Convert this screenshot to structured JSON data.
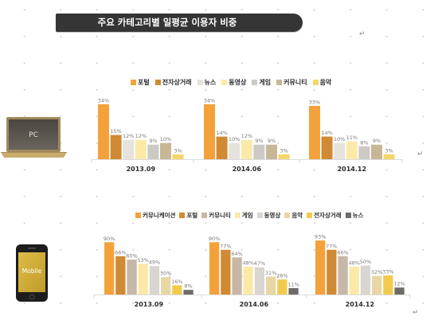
{
  "title": "주요 카테고리별 일평균 이용자 비중",
  "paragraph_marks": {
    "after_title": "↵",
    "after_pc_chart": "↵",
    "after_mobile_chart": "↵"
  },
  "chart_data": [
    {
      "type": "bar",
      "device": "PC",
      "icon": "laptop-icon",
      "legend": "top",
      "grid": false,
      "y_axis_visible": false,
      "value_suffix": "%",
      "categories": [
        "2013.09",
        "2014.06",
        "2014.12"
      ],
      "series": [
        {
          "name": "포털",
          "color": "#F3A23B",
          "values": [
            34,
            34,
            33
          ]
        },
        {
          "name": "전자상거래",
          "color": "#D08A33",
          "values": [
            15,
            14,
            14
          ]
        },
        {
          "name": "뉴스",
          "color": "#E6E2DC",
          "values": [
            12,
            10,
            10
          ]
        },
        {
          "name": "동영상",
          "color": "#FBE9A8",
          "values": [
            12,
            12,
            11
          ]
        },
        {
          "name": "게임",
          "color": "#CDC9C4",
          "values": [
            9,
            9,
            8
          ]
        },
        {
          "name": "커뮤니티",
          "color": "#C8B796",
          "values": [
            10,
            9,
            9
          ]
        },
        {
          "name": "음악",
          "color": "#F3D66A",
          "values": [
            3,
            3,
            3
          ]
        }
      ]
    },
    {
      "type": "bar",
      "device": "Mobile",
      "icon": "smartphone-icon",
      "legend": "top",
      "grid": false,
      "y_axis_visible": false,
      "value_suffix": "%",
      "categories": [
        "2013.09",
        "2014.06",
        "2014.12"
      ],
      "series": [
        {
          "name": "커뮤니케이션",
          "color": "#F3A23B",
          "values": [
            90,
            90,
            93
          ]
        },
        {
          "name": "포털",
          "color": "#D08A33",
          "values": [
            66,
            77,
            77
          ]
        },
        {
          "name": "커뮤니티",
          "color": "#C6B7A6",
          "values": [
            60,
            64,
            66
          ]
        },
        {
          "name": "게임",
          "color": "#FBE9A8",
          "values": [
            53,
            48,
            48
          ]
        },
        {
          "name": "동영상",
          "color": "#D9D5D0",
          "values": [
            49,
            47,
            50
          ]
        },
        {
          "name": "음악",
          "color": "#E8D7A5",
          "values": [
            30,
            31,
            32
          ]
        },
        {
          "name": "전자상거래",
          "color": "#F2CB4E",
          "values": [
            16,
            26,
            33
          ]
        },
        {
          "name": "뉴스",
          "color": "#6F6B67",
          "values": [
            8,
            11,
            12
          ]
        }
      ]
    }
  ]
}
